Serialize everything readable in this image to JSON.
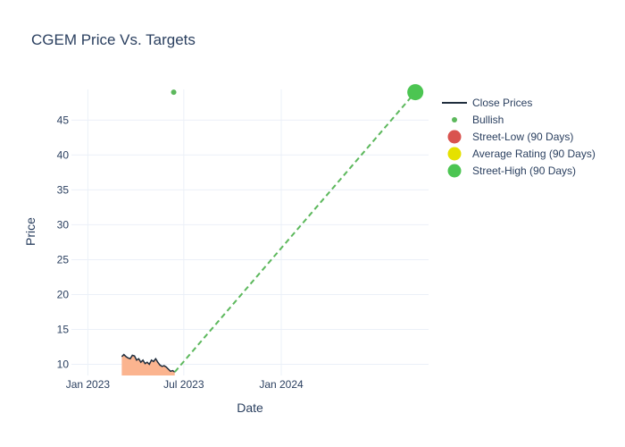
{
  "chart_data": {
    "type": "line",
    "title": "CGEM Price Vs. Targets",
    "xlabel": "Date",
    "ylabel": "Price",
    "x_range": [
      "2022-12-01",
      "2024-10-05"
    ],
    "ylim": [
      8.4,
      49.4
    ],
    "x_ticks": [
      {
        "date": "2023-01-01",
        "label": "Jan 2023"
      },
      {
        "date": "2023-07-01",
        "label": "Jul 2023"
      },
      {
        "date": "2024-01-01",
        "label": "Jan 2024"
      }
    ],
    "y_ticks": [
      10,
      15,
      20,
      25,
      30,
      35,
      40,
      45
    ],
    "grid": true,
    "legend_position": "right",
    "series": [
      {
        "name": "Close Prices",
        "type": "line-area",
        "color": "#1f2d3d",
        "fill_color": "#fbb48f",
        "points": [
          [
            "2023-03-06",
            11.1
          ],
          [
            "2023-03-10",
            11.4
          ],
          [
            "2023-03-14",
            11.1
          ],
          [
            "2023-03-18",
            10.9
          ],
          [
            "2023-03-22",
            10.8
          ],
          [
            "2023-03-26",
            11.3
          ],
          [
            "2023-03-30",
            11.2
          ],
          [
            "2023-04-03",
            10.6
          ],
          [
            "2023-04-07",
            10.8
          ],
          [
            "2023-04-11",
            10.3
          ],
          [
            "2023-04-15",
            10.6
          ],
          [
            "2023-04-19",
            10.1
          ],
          [
            "2023-04-23",
            10.3
          ],
          [
            "2023-04-27",
            10.0
          ],
          [
            "2023-05-01",
            10.6
          ],
          [
            "2023-05-05",
            10.4
          ],
          [
            "2023-05-09",
            10.8
          ],
          [
            "2023-05-13",
            10.3
          ],
          [
            "2023-05-17",
            9.9
          ],
          [
            "2023-05-21",
            9.7
          ],
          [
            "2023-05-25",
            9.8
          ],
          [
            "2023-05-29",
            9.6
          ],
          [
            "2023-06-02",
            9.3
          ],
          [
            "2023-06-06",
            9.0
          ],
          [
            "2023-06-10",
            9.1
          ],
          [
            "2023-06-14",
            8.9
          ]
        ]
      },
      {
        "name": "Bullish",
        "type": "scatter",
        "color": "#5cb85c",
        "points": [
          [
            "2023-06-12",
            49
          ]
        ]
      },
      {
        "name": "Street-Low (90 Days)",
        "type": "marker",
        "color": "#d9534f",
        "points": []
      },
      {
        "name": "Average Rating (90 Days)",
        "type": "marker",
        "color": "#e5e100",
        "points": []
      },
      {
        "name": "Street-High (90 Days)",
        "type": "marker",
        "color": "#4cc552",
        "points": [
          [
            "2024-09-10",
            49
          ]
        ]
      }
    ],
    "target_line": {
      "color": "#5cb85c",
      "style": "dashed",
      "from": [
        "2023-06-14",
        8.9
      ],
      "to": [
        "2024-09-10",
        49
      ]
    }
  }
}
